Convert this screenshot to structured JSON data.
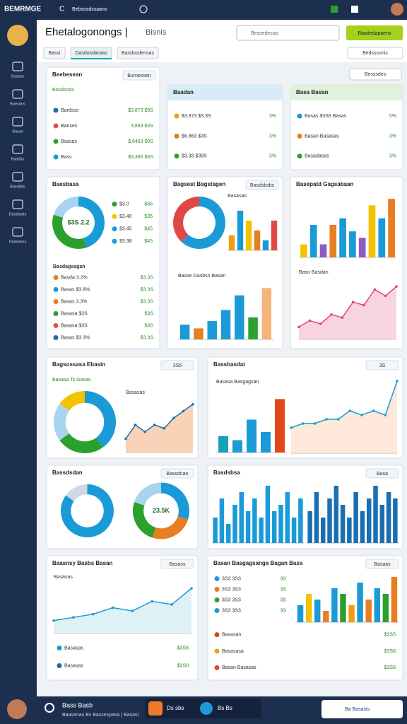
{
  "topbar": {
    "brand": "BEMRMGE",
    "tab": "Bebsosdssaans"
  },
  "header": {
    "title": "Ehetalogonongs |",
    "subtitle": "Bisnis",
    "search": "Bessedesop",
    "button": "Baadedapaens"
  },
  "tabs": [
    "Bassi",
    "Dasdosdaraas",
    "Basdosdensas"
  ],
  "filter": "Bedsssonis",
  "filter2": "Besssdes",
  "sidebar": [
    "Basses",
    "Baesdos",
    "Basse",
    "Baddas",
    "Basddds",
    "Dasdsads",
    "Dadsdses"
  ],
  "cards": [
    {
      "title": "Beebesean",
      "action": "Burnessen",
      "sub": "Bosdsods",
      "widgets": [
        {
          "type": "rows",
          "items": [
            {
              "label": "Bardsss",
              "value": "$3.873 $9S",
              "color": "#1a6fb0"
            },
            {
              "label": "Banses",
              "value": "3,893 $3S",
              "color": "#d9534f"
            },
            {
              "label": "Bsasas",
              "value": "$.6463 $0S",
              "color": "#2ca02c"
            },
            {
              "label": "Bass",
              "value": "$3,386 $0S",
              "color": "#1a9bd7"
            }
          ]
        }
      ]
    },
    {
      "title": "Baadan",
      "accent": "#d8ecf8",
      "widgets": [
        {
          "type": "rows",
          "items": [
            {
              "label": "$3.873 $3.3S",
              "value": "3%",
              "color": "#f39c12"
            },
            {
              "label": "$6.863 $3S",
              "value": "3%",
              "color": "#e67e22"
            },
            {
              "label": "$3.33 $39S",
              "value": "3%",
              "color": "#2ca02c"
            }
          ]
        }
      ]
    },
    {
      "title": "Basa Basan",
      "accent": "#e0f2dc",
      "widgets": [
        {
          "type": "rows",
          "items": [
            {
              "label": "Basas $3S6 Basas",
              "value": "5%",
              "color": "#1a9bd7"
            },
            {
              "label": "Basan Basasas",
              "value": "3%",
              "color": "#e67e22"
            },
            {
              "label": "Basadasas",
              "value": "3%",
              "color": "#2ca02c"
            }
          ]
        }
      ]
    },
    {
      "title": "Baesbasa",
      "widgets": [
        {
          "type": "donut",
          "values": [
            45,
            35,
            20
          ],
          "colors": [
            "#1a9bd7",
            "#2ca02c",
            "#a9d4ef"
          ],
          "center": "$3S 2.2"
        },
        {
          "type": "rows",
          "items": [
            {
              "label": "$3.0",
              "value": "$65",
              "color": "#2ca02c"
            },
            {
              "label": "$3.40",
              "value": "$35",
              "color": "#f2c400"
            },
            {
              "label": "$3.45",
              "value": "$45",
              "color": "#1a9bd7"
            },
            {
              "label": "$3.38",
              "value": "$45",
              "color": "#1a9bd7"
            }
          ]
        },
        {
          "type": "rows",
          "title": "Basdagsagan",
          "items": [
            {
              "label": "Basda 3.2%",
              "value": "$3.3S",
              "color": "#e67e22"
            },
            {
              "label": "Basas $3.8%",
              "value": "$3.3S",
              "color": "#1a9bd7"
            },
            {
              "label": "Basas 3.3%",
              "value": "$3.3S",
              "color": "#e67e22"
            },
            {
              "label": "Basasa $3S",
              "value": "$3S",
              "color": "#2ca02c"
            },
            {
              "label": "Basasa $3S",
              "value": "$3S",
              "color": "#d9534f"
            },
            {
              "label": "Basas $3.3%",
              "value": "$3.3S",
              "color": "#1a6fb0"
            }
          ]
        }
      ]
    },
    {
      "title": "Bagsest Bagstagen",
      "action": "Basdsbsbs",
      "widgets": [
        {
          "type": "donut",
          "values": [
            62,
            38
          ],
          "colors": [
            "#1a9bd7",
            "#e04848"
          ]
        },
        {
          "type": "bar",
          "title": "Basasas",
          "values": [
            3,
            8,
            6,
            4,
            2,
            6
          ],
          "colors": [
            "#f39c12",
            "#1a9bd7",
            "#f2c400",
            "#e67e22",
            "#1a9bd7",
            "#e04848"
          ],
          "ylim": [
            0,
            10
          ]
        },
        {
          "type": "bar",
          "title": "Basse Gasbsn Basan",
          "values": [
            2,
            1.5,
            2.5,
            4,
            6,
            3,
            7
          ],
          "colors": [
            "#1a9bd7",
            "#e67e22",
            "#1a9bd7",
            "#1a9bd7",
            "#1a9bd7",
            "#2ca02c",
            "#f5b57a"
          ],
          "ylim": [
            0,
            8
          ]
        }
      ]
    },
    {
      "title": "Basepatd Gagsabaan",
      "widgets": [
        {
          "type": "bar",
          "values": [
            2,
            5,
            2,
            5,
            6,
            4,
            3,
            8,
            6,
            9
          ],
          "colors": [
            "#f2c400",
            "#1a9bd7",
            "#8e5bc2",
            "#e67e22",
            "#1a9bd7",
            "#1a9bd7",
            "#8e5bc2",
            "#f2c400",
            "#1a9bd7",
            "#e67e22"
          ],
          "ylim": [
            0,
            10
          ]
        },
        {
          "type": "line",
          "title": "Basn Basdan",
          "values": [
            2,
            3,
            2.5,
            4,
            3.5,
            6,
            5.5,
            8,
            7,
            8.5
          ],
          "color": "#e04880",
          "fill": "#f6c9dc",
          "ylim": [
            0,
            10
          ]
        }
      ]
    },
    {
      "title": "Bagsossasa Ebasin",
      "sub": "Basasa Ts Gasas",
      "action": "3S6",
      "widgets": [
        {
          "type": "donut",
          "values": [
            40,
            25,
            20,
            15
          ],
          "colors": [
            "#1a9bd7",
            "#2ca02c",
            "#a9d4ef",
            "#f2c400"
          ]
        },
        {
          "type": "line",
          "title": "Basasas",
          "values": [
            2,
            4,
            3,
            4,
            3.5,
            5,
            6,
            7
          ],
          "color": "#1a6fb0",
          "fill": "#f8c7a5",
          "ylim": [
            0,
            8
          ]
        }
      ]
    },
    {
      "title": "Bassbasdat",
      "action": "3S",
      "widgets": [
        {
          "type": "bar",
          "title": "Basasa Basgagsan",
          "values": [
            2,
            1.5,
            4,
            2.5,
            6.5
          ],
          "colors": [
            "#17a2b8",
            "#1a9bd7",
            "#1a9bd7",
            "#1a9bd7",
            "#e04818"
          ],
          "ylim": [
            0,
            8
          ]
        },
        {
          "type": "line",
          "values": [
            3,
            3.5,
            3.5,
            4,
            4,
            5,
            4.5,
            5,
            4.5,
            8.5
          ],
          "color": "#1a9bd7",
          "fill": "#fde2cf",
          "ylim": [
            0,
            9
          ]
        }
      ]
    },
    {
      "title": "Bassdsdan",
      "action": "Bassdnan",
      "widgets": [
        {
          "type": "donut",
          "values": [
            85,
            15
          ],
          "colors": [
            "#1a9bd7",
            "#cfd8e3"
          ]
        },
        {
          "type": "donut",
          "values": [
            30,
            25,
            25,
            20
          ],
          "colors": [
            "#1a9bd7",
            "#e67e22",
            "#2ca02c",
            "#a9d4ef"
          ],
          "center": "23.5K"
        }
      ]
    },
    {
      "title": "Basdsbsa",
      "action": "Basa",
      "widgets": [
        {
          "type": "bar",
          "values": [
            4,
            7,
            3,
            6,
            8,
            5,
            7,
            4,
            9,
            5,
            6,
            8,
            4,
            7
          ],
          "color": "#1a9bd7",
          "ylim": [
            0,
            10
          ]
        },
        {
          "type": "bar",
          "values": [
            5,
            8,
            4,
            7,
            9,
            6,
            4,
            8,
            5,
            7,
            9,
            6,
            8,
            7
          ],
          "color": "#1a6fb0",
          "ylim": [
            0,
            10
          ]
        }
      ]
    },
    {
      "title": "Baasnsy Basbs Basan",
      "action": "Basass",
      "widgets": [
        {
          "type": "line",
          "title": "Basasas",
          "values": [
            2,
            2.5,
            3,
            4,
            3.5,
            5,
            4.5,
            7
          ],
          "color": "#1a9bd7",
          "fill": "#d6eef1",
          "ylim": [
            0,
            8
          ]
        },
        {
          "type": "rows",
          "items": [
            {
              "label": "Basasas",
              "value": "$3S6",
              "color": "#1a9bd7"
            },
            {
              "label": "Basasas",
              "value": "$3S0",
              "color": "#1a6fb0"
            }
          ]
        }
      ]
    },
    {
      "title": "Basan Basgagsanga Bagan Basa",
      "action": "Basaas",
      "widgets": [
        {
          "type": "rows",
          "items": [
            {
              "label": "3S3 3S3",
              "value": "3S",
              "color": "#1a9bd7"
            },
            {
              "label": "3S3 3S3",
              "value": "3S",
              "color": "#e67e22"
            },
            {
              "label": "3S3 3S3",
              "value": "3S",
              "color": "#2ca02c"
            },
            {
              "label": "3S3 3S3",
              "value": "3S",
              "color": "#1a9bd7"
            }
          ]
        },
        {
          "type": "bar",
          "values": [
            3,
            5,
            4,
            2,
            6,
            5,
            3,
            7,
            4,
            6,
            5,
            8
          ],
          "colors": [
            "#1a9bd7",
            "#f2c400",
            "#1a9bd7",
            "#e67e22",
            "#1a9bd7",
            "#2ca02c",
            "#f39c12",
            "#1a9bd7",
            "#e67e22",
            "#1a9bd7",
            "#2ca02c",
            "#e67e22"
          ],
          "ylim": [
            0,
            9
          ]
        },
        {
          "type": "rows",
          "items": [
            {
              "label": "Basasan",
              "value": "$3S5",
              "color": "#e04818"
            },
            {
              "label": "Basasasa",
              "value": "$3S8",
              "color": "#f39c12"
            },
            {
              "label": "Basan Basasas",
              "value": "$3S8",
              "color": "#e04818"
            }
          ]
        }
      ]
    }
  ],
  "bottom": {
    "name": "Bass Basb",
    "note": "Baasenas Bs Bassespasa | Basasi",
    "pill1": "Ds sbs",
    "pill2": "Bs Bs",
    "button": "Ba Basasis"
  }
}
